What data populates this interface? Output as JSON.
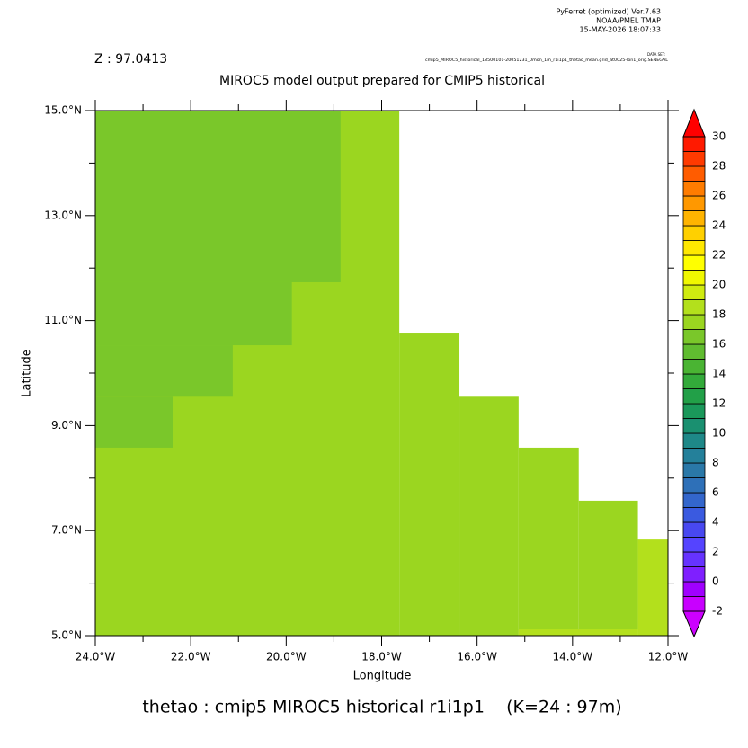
{
  "chart_data": {
    "type": "shaded_map",
    "header": [
      "PyFerret (optimized) Ver.7.63",
      "NOAA/PMEL TMAP",
      "15-MAY-2026 18:07:33"
    ],
    "z_label": "Z : 97.0413",
    "dataset_label": "DATA SET:",
    "dataset_name": "cmip5_MIROC5_historical_18500101-20051231_0mon_1m_r1i1p1_thetao_mean.grid_at0025-lon1_orig.SENEGAL",
    "title": "MIROC5 model output prepared for CMIP5 historical",
    "xlabel": "Longitude",
    "ylabel": "Latitude",
    "footer": "thetao : cmip5 MIROC5 historical r1i1p1    (K=24 : 97m)",
    "xlim": [
      -24,
      -12
    ],
    "ylim": [
      5,
      15
    ],
    "xticks": [
      {
        "value": -24,
        "label": "24.0°W"
      },
      {
        "value": -22,
        "label": "22.0°W"
      },
      {
        "value": -20,
        "label": "20.0°W"
      },
      {
        "value": -18,
        "label": "18.0°W"
      },
      {
        "value": -16,
        "label": "16.0°W"
      },
      {
        "value": -14,
        "label": "14.0°W"
      },
      {
        "value": -12,
        "label": "12.0°W"
      }
    ],
    "xminorticks": [
      -23,
      -21,
      -19,
      -17,
      -15,
      -13
    ],
    "yticks": [
      {
        "value": 5,
        "label": "5.0°N"
      },
      {
        "value": 7,
        "label": "7.0°N"
      },
      {
        "value": 9,
        "label": "9.0°N"
      },
      {
        "value": 11,
        "label": "11.0°N"
      },
      {
        "value": 13,
        "label": "13.0°N"
      },
      {
        "value": 15,
        "label": "15.0°N"
      }
    ],
    "yminorticks": [
      6,
      8,
      10,
      12,
      14
    ],
    "cells": [
      {
        "lon": [
          -24,
          -17.63
        ],
        "lat": [
          5,
          15
        ],
        "value": 17.5
      },
      {
        "lon": [
          -17.63,
          -16.37
        ],
        "lat": [
          5,
          10.77
        ],
        "value": 17.5
      },
      {
        "lon": [
          -16.37,
          -15.13
        ],
        "lat": [
          5,
          9.55
        ],
        "value": 17.5
      },
      {
        "lon": [
          -15.13,
          -13.87
        ],
        "lat": [
          5,
          8.58
        ],
        "value": 17.5
      },
      {
        "lon": [
          -13.87,
          -12.63
        ],
        "lat": [
          5,
          7.57
        ],
        "value": 17.5
      },
      {
        "lon": [
          -12.63,
          -12
        ],
        "lat": [
          5,
          6.83
        ],
        "value": 18.3
      },
      {
        "lon": [
          -15.13,
          -12.63
        ],
        "lat": [
          5,
          5.12
        ],
        "value": 18.3
      },
      {
        "lon": [
          -24,
          -18.86
        ],
        "lat": [
          11.73,
          15
        ],
        "value": 16.5
      },
      {
        "lon": [
          -24,
          -19.88
        ],
        "lat": [
          10.53,
          11.73
        ],
        "value": 16.5
      },
      {
        "lon": [
          -24,
          -21.12
        ],
        "lat": [
          9.55,
          10.53
        ],
        "value": 16.5
      },
      {
        "lon": [
          -24,
          -22.38
        ],
        "lat": [
          8.58,
          9.55
        ],
        "value": 16.5
      }
    ],
    "clim": [
      -2,
      30
    ],
    "colors": [
      "#c800ff",
      "#a000ff",
      "#7f1fff",
      "#6633ff",
      "#5544ff",
      "#4848f0",
      "#3a5ae0",
      "#3366cc",
      "#2e70b8",
      "#2a78a8",
      "#24809a",
      "#1e8888",
      "#1a9070",
      "#1a985a",
      "#22a048",
      "#33aa3a",
      "#4ab433",
      "#60bc30",
      "#7ac72a",
      "#9bd620",
      "#b3e01c",
      "#d0ec10",
      "#f0f800",
      "#ffff00",
      "#ffe800",
      "#ffd000",
      "#ffb400",
      "#ff9800",
      "#ff7c00",
      "#ff5c00",
      "#ff3a00",
      "#ff1a00"
    ],
    "extend_low_color": "#cc00ff",
    "extend_high_color": "#ff0000",
    "cticks": [
      -2,
      0,
      2,
      4,
      6,
      8,
      10,
      12,
      14,
      16,
      18,
      20,
      22,
      24,
      26,
      28,
      30
    ]
  }
}
